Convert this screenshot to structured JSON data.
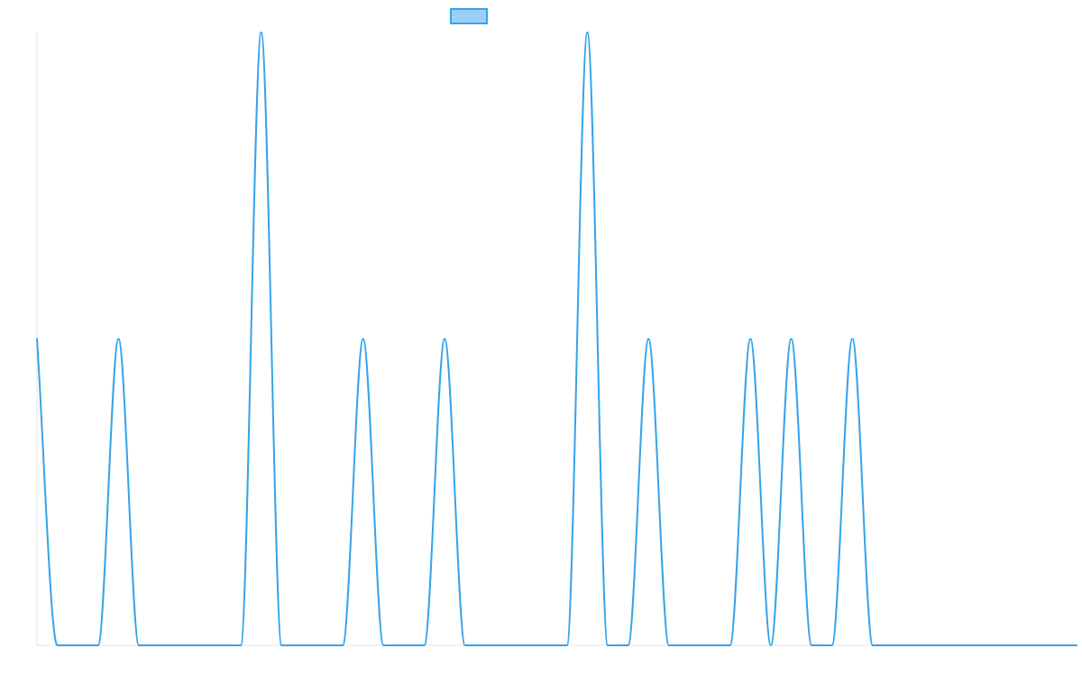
{
  "chart_data": {
    "type": "line",
    "title": "",
    "xlabel": "",
    "ylabel": "",
    "xlim": [
      0,
      51
    ],
    "ylim": [
      0,
      2
    ],
    "grid": false,
    "legend": {
      "position": "top-center",
      "entries": [
        ""
      ]
    },
    "colors": {
      "line": "#36a2eb",
      "legend_fill": "#9ad0f5",
      "axis": "#e6e6e6"
    },
    "series": [
      {
        "name": "",
        "x": [
          0,
          1,
          2,
          3,
          4,
          5,
          6,
          7,
          8,
          9,
          10,
          11,
          12,
          13,
          14,
          15,
          16,
          17,
          18,
          19,
          20,
          21,
          22,
          23,
          24,
          25,
          26,
          27,
          28,
          29,
          30,
          31,
          32,
          33,
          34,
          35,
          36,
          37,
          38,
          39,
          40,
          41,
          42,
          43,
          44,
          45,
          46,
          47,
          48,
          49,
          50,
          51
        ],
        "values": [
          1,
          0,
          0,
          0,
          1,
          0,
          0,
          0,
          0,
          0,
          0,
          2,
          0,
          0,
          0,
          0,
          1,
          0,
          0,
          0,
          1,
          0,
          0,
          0,
          0,
          0,
          0,
          2,
          0,
          0,
          1,
          0,
          0,
          0,
          0,
          1,
          0,
          1,
          0,
          0,
          1,
          0,
          0,
          0,
          0,
          0,
          0,
          0,
          0,
          0,
          0,
          0
        ]
      }
    ]
  }
}
